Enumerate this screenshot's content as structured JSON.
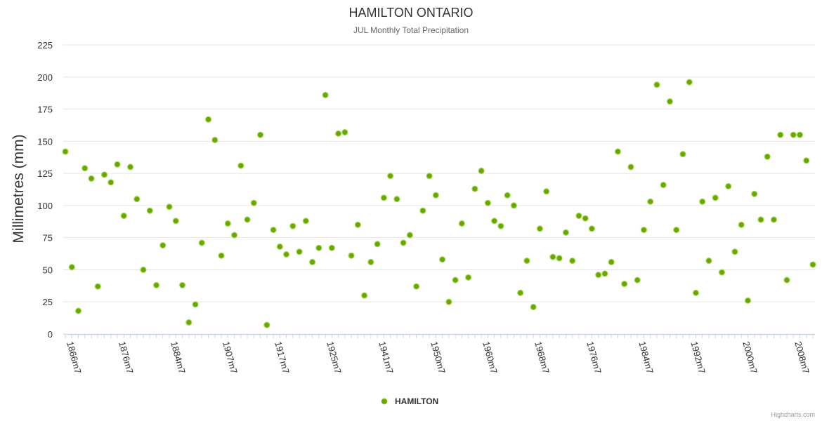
{
  "chart_data": {
    "type": "scatter",
    "title": "HAMILTON ONTARIO",
    "subtitle": "JUL Monthly Total Precipitation",
    "ylabel": "Millimetres (mm)",
    "xlabel": "",
    "ylim": [
      0,
      225
    ],
    "yticks": [
      0,
      25,
      50,
      75,
      100,
      125,
      150,
      175,
      200,
      225
    ],
    "xticklabels": [
      "1866m7",
      "1876m7",
      "1884m7",
      "1907m7",
      "1917m7",
      "1925m7",
      "1941m7",
      "1950m7",
      "1960m7",
      "1968m7",
      "1976m7",
      "1984m7",
      "1992m7",
      "2000m7",
      "2008m7"
    ],
    "xtick_index": [
      0,
      8,
      16,
      24,
      32,
      40,
      48,
      56,
      64,
      72,
      80,
      88,
      96,
      104,
      112
    ],
    "n_categories": 116,
    "grid": true,
    "legend_position": "bottom-center",
    "series": [
      {
        "name": "HAMILTON",
        "color": "#7cb5ec",
        "marker_fill": "#6aa600",
        "values": [
          142,
          52,
          18,
          129,
          121,
          37,
          124,
          118,
          132,
          92,
          130,
          105,
          50,
          96,
          38,
          69,
          99,
          88,
          38,
          9,
          23,
          71,
          167,
          151,
          61,
          86,
          77,
          131,
          89,
          102,
          155,
          7,
          81,
          68,
          62,
          84,
          64,
          88,
          56,
          67,
          186,
          67,
          156,
          157,
          61,
          85,
          30,
          56,
          70,
          106,
          123,
          105,
          71,
          77,
          37,
          96,
          123,
          108,
          58,
          25,
          42,
          86,
          44,
          113,
          127,
          102,
          88,
          84,
          108,
          100,
          32,
          57,
          21,
          82,
          111,
          60,
          59,
          79,
          57,
          92,
          90,
          82,
          46,
          47,
          56,
          142,
          39,
          130,
          42,
          81,
          103,
          194,
          116,
          181,
          81,
          140,
          196,
          32,
          103,
          57,
          106,
          48,
          115,
          64,
          85,
          26,
          109,
          89,
          138,
          89,
          155,
          42,
          155,
          155,
          135,
          54
        ]
      }
    ]
  },
  "credits": "Highcharts.com"
}
